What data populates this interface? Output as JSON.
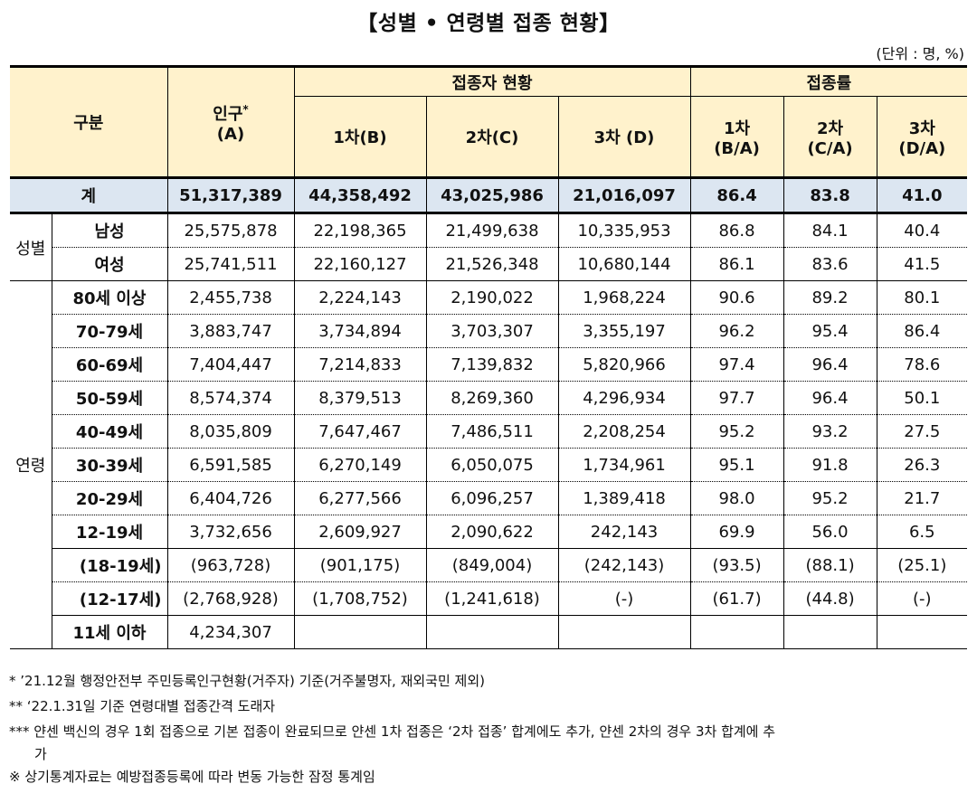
{
  "title": "【성별 • 연령별 접종 현황】",
  "unit": "(단위 : 명, %)",
  "header": {
    "category": "구분",
    "population": "인구",
    "population_mark": "*",
    "population_sub": "(A)",
    "vaccinated_group": "접종자 현황",
    "rate_group": "접종률",
    "dose1": "1차(B)",
    "dose2": "2차(C)",
    "dose3": "3차 (D)",
    "rate1_a": "1차",
    "rate1_b": "(B/A)",
    "rate2_a": "2차",
    "rate2_b": "(C/A)",
    "rate3_a": "3차",
    "rate3_b": "(D/A)"
  },
  "total": {
    "label": "계",
    "values": [
      "51,317,389",
      "44,358,492",
      "43,025,986",
      "21,016,097",
      "86.4",
      "83.8",
      "41.0"
    ]
  },
  "sex": {
    "label": "성별",
    "rows": [
      {
        "label": "남성",
        "values": [
          "25,575,878",
          "22,198,365",
          "21,499,638",
          "10,335,953",
          "86.8",
          "84.1",
          "40.4"
        ]
      },
      {
        "label": "여성",
        "values": [
          "25,741,511",
          "22,160,127",
          "21,526,348",
          "10,680,144",
          "86.1",
          "83.6",
          "41.5"
        ]
      }
    ]
  },
  "age": {
    "label": "연령",
    "rows": [
      {
        "label": "80세 이상",
        "values": [
          "2,455,738",
          "2,224,143",
          "2,190,022",
          "1,968,224",
          "90.6",
          "89.2",
          "80.1"
        ]
      },
      {
        "label": "70-79세",
        "values": [
          "3,883,747",
          "3,734,894",
          "3,703,307",
          "3,355,197",
          "96.2",
          "95.4",
          "86.4"
        ]
      },
      {
        "label": "60-69세",
        "values": [
          "7,404,447",
          "7,214,833",
          "7,139,832",
          "5,820,966",
          "97.4",
          "96.4",
          "78.6"
        ]
      },
      {
        "label": "50-59세",
        "values": [
          "8,574,374",
          "8,379,513",
          "8,269,360",
          "4,296,934",
          "97.7",
          "96.4",
          "50.1"
        ]
      },
      {
        "label": "40-49세",
        "values": [
          "8,035,809",
          "7,647,467",
          "7,486,511",
          "2,208,254",
          "95.2",
          "93.2",
          "27.5"
        ]
      },
      {
        "label": "30-39세",
        "values": [
          "6,591,585",
          "6,270,149",
          "6,050,075",
          "1,734,961",
          "95.1",
          "91.8",
          "26.3"
        ]
      },
      {
        "label": "20-29세",
        "values": [
          "6,404,726",
          "6,277,566",
          "6,096,257",
          "1,389,418",
          "98.0",
          "95.2",
          "21.7"
        ]
      },
      {
        "label": "12-19세",
        "values": [
          "3,732,656",
          "2,609,927",
          "2,090,622",
          "242,143",
          "69.9",
          "56.0",
          "6.5"
        ]
      }
    ],
    "subrows": [
      {
        "label": "(18-19세)",
        "values": [
          "(963,728)",
          "(901,175)",
          "(849,004)",
          "(242,143)",
          "(93.5)",
          "(88.1)",
          "(25.1)"
        ]
      },
      {
        "label": "(12-17세)",
        "values": [
          "(2,768,928)",
          "(1,708,752)",
          "(1,241,618)",
          "(-)",
          "(61.7)",
          "(44.8)",
          "(-)"
        ]
      }
    ],
    "under11": {
      "label": "11세 이하",
      "values": [
        "4,234,307",
        "",
        "",
        "",
        "",
        "",
        ""
      ]
    }
  },
  "notes": [
    "* ’21.12월 행정안전부 주민등록인구현황(거주자) 기준(거주불명자, 재외국민 제외)",
    "** ‘22.1.31일 기준 연령대별 접종간격 도래자",
    "*** 얀센 백신의 경우 1회 접종으로 기본 접종이 완료되므로 얀센 1차 접종은 ‘2차 접종’ 합계에도 추가, 얀센 2차의 경우 3차 합계에 추",
    "가",
    "※ 상기통계자료는 예방접종등록에 따라 변동 가능한 잠정 통계임"
  ]
}
